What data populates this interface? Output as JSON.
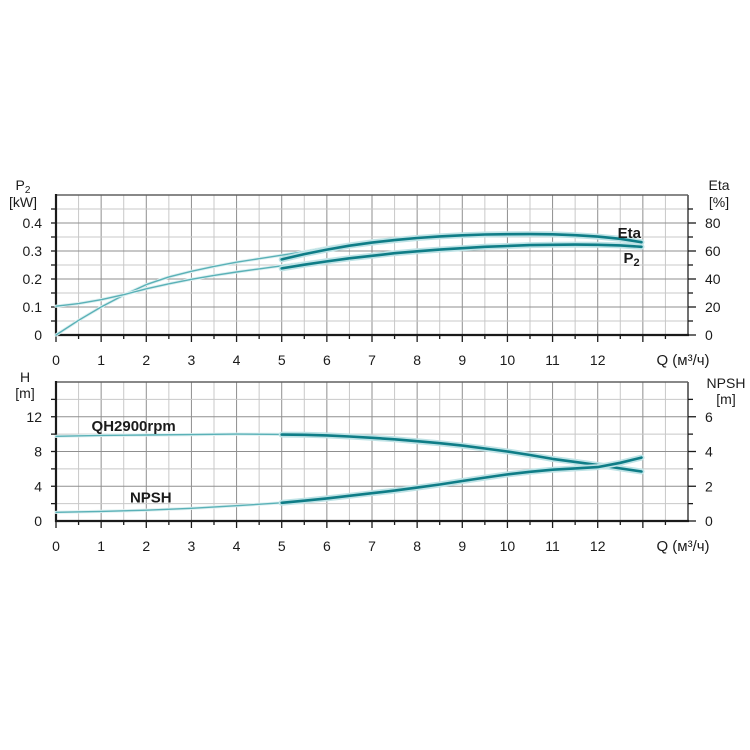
{
  "page": {
    "background": "#ffffff"
  },
  "colors": {
    "curve_thick": "#0f7d87",
    "curve_thick_glow": "#bfe3e6",
    "curve_thin": "#5ab1b7",
    "curve_thin_glow": "#ddf0f1",
    "grid_major": "#8f8f8f",
    "grid_minor": "#c8c8c8",
    "axis_dark": "#1a1a1a",
    "frame_light": "#606060",
    "text": "#1b1b1b"
  },
  "chart_data": [
    {
      "type": "line",
      "title": "",
      "x_axis": {
        "label": "Q (м³/ч)",
        "range": [
          0,
          14
        ],
        "tick_values": [
          0,
          1,
          2,
          3,
          4,
          5,
          6,
          7,
          8,
          9,
          10,
          11,
          12
        ],
        "tick_labels": [
          "0",
          "1",
          "2",
          "3",
          "4",
          "5",
          "6",
          "7",
          "8",
          "9",
          "10",
          "11",
          "12"
        ],
        "minor_step": 0.5
      },
      "left_axis": {
        "title": "P₂",
        "unit": "[kW]",
        "range": [
          0,
          0.5
        ],
        "tick_values": [
          0,
          0.1,
          0.2,
          0.3,
          0.4
        ],
        "tick_labels": [
          "0",
          "0.1",
          "0.2",
          "0.3",
          "0.4"
        ],
        "minor_step": 0.05,
        "major_step": 0.1
      },
      "right_axis": {
        "title": "Eta",
        "unit": "[%]",
        "range": [
          0,
          100
        ],
        "tick_values": [
          0,
          20,
          40,
          60,
          80
        ],
        "tick_labels": [
          "0",
          "20",
          "40",
          "60",
          "80"
        ],
        "minor_step": 10,
        "major_step": 20
      },
      "grid": true,
      "legend_position": "inline-labels",
      "series": [
        {
          "name": "eta_thin",
          "axis": "right",
          "style": "thin",
          "points": [
            [
              0,
              0
            ],
            [
              0.5,
              10.5
            ],
            [
              1,
              20
            ],
            [
              1.5,
              28.5
            ],
            [
              2,
              36
            ],
            [
              2.5,
              41.5
            ],
            [
              3,
              45.5
            ],
            [
              3.5,
              49
            ],
            [
              4,
              52
            ],
            [
              4.5,
              54.5
            ],
            [
              5,
              57
            ],
            [
              5.5,
              59.5
            ],
            [
              6,
              62.5
            ],
            [
              6.5,
              65
            ],
            [
              7,
              67.3
            ],
            [
              7.5,
              68.8
            ],
            [
              7.7,
              69.2
            ]
          ]
        },
        {
          "name": "p2_thin",
          "axis": "left",
          "style": "thin",
          "points": [
            [
              0,
              0.103
            ],
            [
              0.5,
              0.112
            ],
            [
              1,
              0.126
            ],
            [
              1.5,
              0.144
            ],
            [
              2,
              0.165
            ],
            [
              2.5,
              0.183
            ],
            [
              3,
              0.199
            ],
            [
              3.5,
              0.213
            ],
            [
              4,
              0.225
            ],
            [
              4.5,
              0.236
            ],
            [
              5,
              0.247
            ],
            [
              5.5,
              0.258
            ],
            [
              6,
              0.269
            ],
            [
              6.5,
              0.279
            ],
            [
              7,
              0.288
            ],
            [
              7.5,
              0.295
            ],
            [
              7.7,
              0.298
            ]
          ]
        },
        {
          "name": "eta",
          "axis": "right",
          "style": "thick",
          "points": [
            [
              5,
              54
            ],
            [
              5.5,
              57.8
            ],
            [
              6,
              61
            ],
            [
              6.5,
              63.8
            ],
            [
              7,
              66
            ],
            [
              7.5,
              67.8
            ],
            [
              8,
              69.3
            ],
            [
              8.5,
              70.4
            ],
            [
              9,
              71.2
            ],
            [
              9.5,
              71.8
            ],
            [
              10,
              72
            ],
            [
              10.5,
              72.1
            ],
            [
              11,
              71.9
            ],
            [
              11.5,
              71.3
            ],
            [
              12,
              70.3
            ],
            [
              12.5,
              68.7
            ],
            [
              12.97,
              66.3
            ]
          ]
        },
        {
          "name": "p2",
          "axis": "left",
          "style": "thick",
          "points": [
            [
              5,
              0.238
            ],
            [
              5.5,
              0.251
            ],
            [
              6,
              0.263
            ],
            [
              6.5,
              0.274
            ],
            [
              7,
              0.283
            ],
            [
              7.5,
              0.292
            ],
            [
              8,
              0.299
            ],
            [
              8.5,
              0.305
            ],
            [
              9,
              0.31
            ],
            [
              9.5,
              0.315
            ],
            [
              10,
              0.318
            ],
            [
              10.5,
              0.321
            ],
            [
              11,
              0.322
            ],
            [
              11.5,
              0.323
            ],
            [
              12,
              0.322
            ],
            [
              12.5,
              0.32
            ],
            [
              12.97,
              0.315
            ]
          ]
        }
      ],
      "annotations": [
        {
          "text": "Eta",
          "q": 12.7,
          "v": 73,
          "axis": "right"
        },
        {
          "text": "P₂",
          "q": 12.75,
          "v": 55,
          "axis": "right"
        }
      ]
    },
    {
      "type": "line",
      "title": "",
      "x_axis": {
        "label": "Q (м³/ч)",
        "range": [
          0,
          14
        ],
        "tick_values": [
          0,
          1,
          2,
          3,
          4,
          5,
          6,
          7,
          8,
          9,
          10,
          11,
          12
        ],
        "tick_labels": [
          "0",
          "1",
          "2",
          "3",
          "4",
          "5",
          "6",
          "7",
          "8",
          "9",
          "10",
          "11",
          "12"
        ],
        "minor_step": 0.5
      },
      "left_axis": {
        "title": "H",
        "unit": "[m]",
        "range": [
          0,
          16
        ],
        "tick_values": [
          0,
          4,
          8,
          12
        ],
        "tick_labels": [
          "0",
          "4",
          "8",
          "12"
        ],
        "minor_step": 2,
        "major_step": 4
      },
      "right_axis": {
        "title": "NPSH",
        "unit": "[m]",
        "range": [
          0,
          8
        ],
        "tick_values": [
          0,
          2,
          4,
          6
        ],
        "tick_labels": [
          "0",
          "2",
          "4",
          "6"
        ],
        "minor_step": 1,
        "major_step": 2
      },
      "grid": true,
      "legend_position": "inline-labels",
      "series": [
        {
          "name": "qh_thin",
          "axis": "left",
          "style": "thin",
          "points": [
            [
              0,
              9.75
            ],
            [
              1,
              9.85
            ],
            [
              2,
              9.9
            ],
            [
              3,
              9.95
            ],
            [
              4,
              10
            ],
            [
              5,
              9.97
            ]
          ]
        },
        {
          "name": "npsh_thin",
          "axis": "right",
          "style": "thin",
          "points": [
            [
              0,
              0.5
            ],
            [
              1,
              0.55
            ],
            [
              2,
              0.62
            ],
            [
              3,
              0.73
            ],
            [
              4,
              0.88
            ],
            [
              5,
              1.05
            ]
          ]
        },
        {
          "name": "qh2900rpm",
          "axis": "left",
          "style": "thick",
          "points": [
            [
              5,
              9.95
            ],
            [
              5.5,
              9.92
            ],
            [
              6,
              9.85
            ],
            [
              6.5,
              9.73
            ],
            [
              7,
              9.58
            ],
            [
              7.5,
              9.4
            ],
            [
              8,
              9.18
            ],
            [
              8.5,
              8.95
            ],
            [
              9,
              8.68
            ],
            [
              9.5,
              8.35
            ],
            [
              10,
              8
            ],
            [
              10.5,
              7.6
            ],
            [
              11,
              7.15
            ],
            [
              11.5,
              6.8
            ],
            [
              12,
              6.45
            ],
            [
              12.5,
              6.05
            ],
            [
              12.97,
              5.7
            ]
          ]
        },
        {
          "name": "npsh",
          "axis": "right",
          "style": "thick",
          "points": [
            [
              5,
              1.05
            ],
            [
              5.5,
              1.17
            ],
            [
              6,
              1.3
            ],
            [
              6.5,
              1.45
            ],
            [
              7,
              1.6
            ],
            [
              7.5,
              1.75
            ],
            [
              8,
              1.92
            ],
            [
              8.5,
              2.1
            ],
            [
              9,
              2.3
            ],
            [
              9.5,
              2.5
            ],
            [
              10,
              2.68
            ],
            [
              10.5,
              2.83
            ],
            [
              11,
              2.95
            ],
            [
              11.5,
              3.03
            ],
            [
              12,
              3.1
            ],
            [
              12.5,
              3.35
            ],
            [
              12.97,
              3.65
            ]
          ]
        }
      ],
      "annotations": [
        {
          "text": "QH2900rpm",
          "q": 1.72,
          "v": 10.95,
          "axis": "left"
        },
        {
          "text": "NPSH",
          "q": 2.1,
          "v": 1.35,
          "axis": "right"
        }
      ]
    }
  ]
}
